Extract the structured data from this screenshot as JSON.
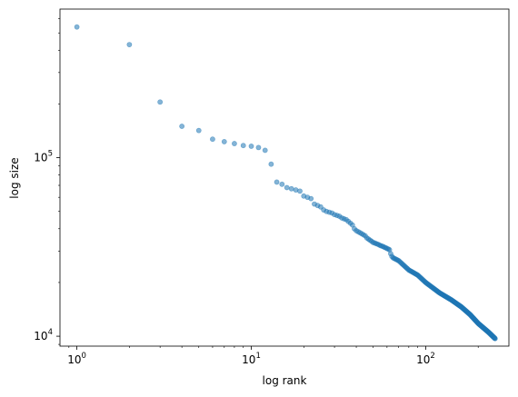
{
  "chart_data": {
    "type": "scatter",
    "xlabel": "log rank",
    "ylabel": "log size",
    "xscale": "log",
    "yscale": "log",
    "xlim": [
      0.8,
      300
    ],
    "ylim": [
      8800,
      680000
    ],
    "xticks": [
      {
        "value": 1,
        "base": "10",
        "exp": "0"
      },
      {
        "value": 10,
        "base": "10",
        "exp": "1"
      },
      {
        "value": 100,
        "base": "10",
        "exp": "2"
      }
    ],
    "yticks": [
      {
        "value": 10000,
        "base": "10",
        "exp": "4"
      },
      {
        "value": 100000,
        "base": "10",
        "exp": "5"
      }
    ],
    "grid": false,
    "marker_color": "#1f77b4",
    "marker_alpha": 0.55,
    "points_head": [
      [
        1,
        540000
      ],
      [
        2,
        430000
      ],
      [
        3,
        205000
      ],
      [
        4,
        150000
      ],
      [
        5,
        142000
      ],
      [
        6,
        127000
      ],
      [
        7,
        123000
      ],
      [
        8,
        120000
      ],
      [
        9,
        117000
      ],
      [
        10,
        116000
      ],
      [
        11,
        114000
      ],
      [
        12,
        110000
      ],
      [
        13,
        92000
      ],
      [
        14,
        73000
      ],
      [
        15,
        71000
      ],
      [
        16,
        68000
      ],
      [
        17,
        67000
      ],
      [
        18,
        66000
      ],
      [
        19,
        65000
      ],
      [
        20,
        61000
      ],
      [
        21,
        60000
      ],
      [
        22,
        59000
      ],
      [
        23,
        55000
      ],
      [
        24,
        54000
      ],
      [
        25,
        53000
      ],
      [
        26,
        51000
      ],
      [
        27,
        50000
      ],
      [
        28,
        49500
      ],
      [
        29,
        49000
      ],
      [
        30,
        48000
      ],
      [
        31,
        47500
      ],
      [
        32,
        47000
      ],
      [
        33,
        46000
      ],
      [
        34,
        45500
      ],
      [
        35,
        45000
      ],
      [
        36,
        44000
      ],
      [
        37,
        43000
      ],
      [
        38,
        42000
      ],
      [
        39,
        40000
      ],
      [
        40,
        39000
      ],
      [
        41,
        38500
      ],
      [
        42,
        38000
      ],
      [
        43,
        37500
      ],
      [
        44,
        37000
      ],
      [
        45,
        36500
      ],
      [
        46,
        35500
      ],
      [
        47,
        35000
      ],
      [
        48,
        34500
      ],
      [
        49,
        34000
      ],
      [
        50,
        33500
      ],
      [
        51,
        33300
      ],
      [
        52,
        33000
      ],
      [
        53,
        32800
      ],
      [
        54,
        32500
      ],
      [
        55,
        32200
      ],
      [
        56,
        32000
      ],
      [
        57,
        31800
      ],
      [
        58,
        31500
      ],
      [
        59,
        31300
      ],
      [
        60,
        31000
      ],
      [
        61,
        30800
      ],
      [
        62,
        30500
      ],
      [
        63,
        29000
      ],
      [
        64,
        28000
      ],
      [
        65,
        27500
      ]
    ],
    "tail": {
      "from_rank": 66,
      "to_rank": 250,
      "log_log_anchors": [
        [
          65,
          27500
        ],
        [
          70,
          26500
        ],
        [
          80,
          23500
        ],
        [
          90,
          22000
        ],
        [
          100,
          20000
        ],
        [
          120,
          17500
        ],
        [
          140,
          16000
        ],
        [
          160,
          14600
        ],
        [
          180,
          13200
        ],
        [
          200,
          11800
        ],
        [
          230,
          10500
        ],
        [
          250,
          9700
        ]
      ]
    }
  }
}
